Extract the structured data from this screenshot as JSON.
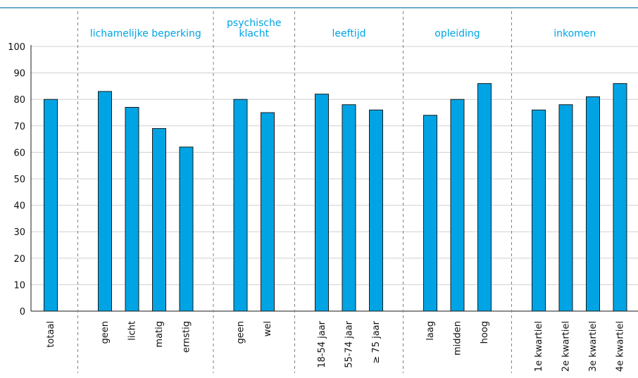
{
  "chart_data": {
    "type": "bar",
    "ylim": [
      0,
      100
    ],
    "yticks": [
      0,
      10,
      20,
      30,
      40,
      50,
      60,
      70,
      80,
      90,
      100
    ],
    "grid": true,
    "colors": {
      "bar": "#00a4e4",
      "bar_stroke": "#1a1a1a",
      "group_label": "#00a4e4",
      "top_rule": "#3a8fb7",
      "grid": "#d0d0d0",
      "separator": "#808080"
    },
    "groups": [
      {
        "label": "",
        "categories": [
          "totaal"
        ],
        "values": [
          80
        ]
      },
      {
        "label": "lichamelijke beperking",
        "categories": [
          "geen",
          "licht",
          "matig",
          "ernstig"
        ],
        "values": [
          83,
          77,
          69,
          62
        ]
      },
      {
        "label_lines": [
          "psychische",
          "klacht"
        ],
        "categories": [
          "geen",
          "wel"
        ],
        "values": [
          80,
          75
        ]
      },
      {
        "label": "leeftijd",
        "categories": [
          "18-54 jaar",
          "55-74 jaar",
          "≥ 75 jaar"
        ],
        "values": [
          82,
          78,
          76
        ]
      },
      {
        "label": "opleiding",
        "categories": [
          "laag",
          "midden",
          "hoog"
        ],
        "values": [
          74,
          80,
          86
        ]
      },
      {
        "label": "inkomen",
        "categories": [
          "1e kwartiel",
          "2e kwartiel",
          "3e kwartiel",
          "4e kwartiel"
        ],
        "values": [
          76,
          78,
          81,
          86
        ]
      }
    ]
  }
}
